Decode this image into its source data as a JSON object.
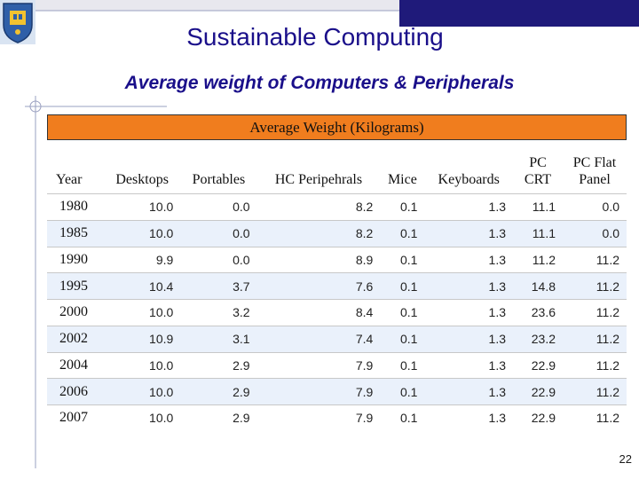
{
  "header": {
    "title": "Sustainable Computing",
    "subtitle": "Average weight of Computers & Peripherals"
  },
  "table": {
    "band_title": "Average Weight (Kilograms)",
    "columns": [
      "Year",
      "Desktops",
      "Portables",
      "HC Peripehrals",
      "Mice",
      "Keyboards",
      "PC CRT",
      "PC Flat Panel"
    ],
    "rows": [
      [
        "1980",
        "10.0",
        "0.0",
        "8.2",
        "0.1",
        "1.3",
        "11.1",
        "0.0"
      ],
      [
        "1985",
        "10.0",
        "0.0",
        "8.2",
        "0.1",
        "1.3",
        "11.1",
        "0.0"
      ],
      [
        "1990",
        "9.9",
        "0.0",
        "8.9",
        "0.1",
        "1.3",
        "11.2",
        "11.2"
      ],
      [
        "1995",
        "10.4",
        "3.7",
        "7.6",
        "0.1",
        "1.3",
        "14.8",
        "11.2"
      ],
      [
        "2000",
        "10.0",
        "3.2",
        "8.4",
        "0.1",
        "1.3",
        "23.6",
        "11.2"
      ],
      [
        "2002",
        "10.9",
        "3.1",
        "7.4",
        "0.1",
        "1.3",
        "23.2",
        "11.2"
      ],
      [
        "2004",
        "10.0",
        "2.9",
        "7.9",
        "0.1",
        "1.3",
        "22.9",
        "11.2"
      ],
      [
        "2006",
        "10.0",
        "2.9",
        "7.9",
        "0.1",
        "1.3",
        "22.9",
        "11.2"
      ],
      [
        "2007",
        "10.0",
        "2.9",
        "7.9",
        "0.1",
        "1.3",
        "22.9",
        "11.2"
      ]
    ]
  },
  "footer": {
    "page_number": "22"
  },
  "colors": {
    "title": "#1a0f8a",
    "band": "#f07d1e",
    "accent_bar": "#1f1a7a",
    "row_alt": "#eaf1fb"
  },
  "icons": {
    "logo": "university-crest-icon"
  }
}
